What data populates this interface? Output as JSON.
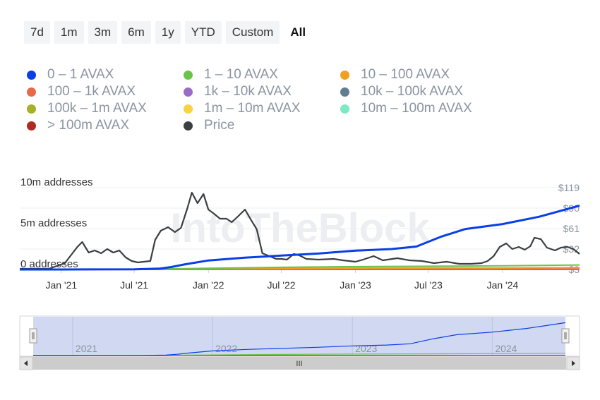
{
  "range_buttons": [
    {
      "label": "7d",
      "active": false
    },
    {
      "label": "1m",
      "active": false
    },
    {
      "label": "3m",
      "active": false
    },
    {
      "label": "6m",
      "active": false
    },
    {
      "label": "1y",
      "active": false
    },
    {
      "label": "YTD",
      "active": false
    },
    {
      "label": "Custom",
      "active": false
    },
    {
      "label": "All",
      "active": true
    }
  ],
  "legend": [
    {
      "label": "0 – 1 AVAX",
      "color": "#0a3ee6"
    },
    {
      "label": "1 – 10 AVAX",
      "color": "#6cc24a"
    },
    {
      "label": "10 – 100 AVAX",
      "color": "#f0a020"
    },
    {
      "label": "100 – 1k AVAX",
      "color": "#e8684a"
    },
    {
      "label": "1k – 10k AVAX",
      "color": "#9b6cc6"
    },
    {
      "label": "10k – 100k AVAX",
      "color": "#5f7f91"
    },
    {
      "label": "100k – 1m AVAX",
      "color": "#a8b023"
    },
    {
      "label": "1m – 10m AVAX",
      "color": "#f7d242"
    },
    {
      "label": "10m – 100m AVAX",
      "color": "#7fe8c4"
    },
    {
      "label": "> 100m AVAX",
      "color": "#b02a22"
    },
    {
      "label": "Price",
      "color": "#3b3f42"
    }
  ],
  "chart_data": {
    "type": "line",
    "watermark": "IntoTheBlock",
    "x_range": [
      "2020-09-20",
      "2024-07-10"
    ],
    "x_tick_labels": [
      {
        "date": "2021-01-01",
        "label": "Jan '21"
      },
      {
        "date": "2021-07-01",
        "label": "Jul '21"
      },
      {
        "date": "2022-01-01",
        "label": "Jan '22"
      },
      {
        "date": "2022-07-01",
        "label": "Jul '22"
      },
      {
        "date": "2023-01-01",
        "label": "Jan '23"
      },
      {
        "date": "2023-07-01",
        "label": "Jul '23"
      },
      {
        "date": "2024-01-01",
        "label": "Jan '24"
      }
    ],
    "y_left": {
      "range": [
        0,
        10000000
      ],
      "ticks": [
        {
          "value": 0,
          "label": "0 addresses"
        },
        {
          "value": 5000000,
          "label": "5m addresses"
        },
        {
          "value": 10000000,
          "label": "10m addresses"
        }
      ]
    },
    "y_right": {
      "range": [
        3,
        119
      ],
      "ticks": [
        {
          "value": 3,
          "label": "$3"
        },
        {
          "value": 32,
          "label": "$32"
        },
        {
          "value": 61,
          "label": "$61"
        },
        {
          "value": 90,
          "label": "$90"
        },
        {
          "value": 119,
          "label": "$119"
        }
      ]
    },
    "series": [
      {
        "name": "0 – 1 AVAX",
        "color": "#0a3ee6",
        "axis": "left",
        "x": [
          "2020-09-20",
          "2021-01-01",
          "2021-07-01",
          "2021-09-01",
          "2021-10-01",
          "2021-11-01",
          "2021-12-01",
          "2022-01-01",
          "2022-04-01",
          "2022-07-01",
          "2022-10-01",
          "2023-01-01",
          "2023-04-01",
          "2023-06-01",
          "2023-08-01",
          "2023-10-01",
          "2024-01-01",
          "2024-04-01",
          "2024-07-10"
        ],
        "y": [
          0,
          0,
          30000,
          100000,
          300000,
          600000,
          850000,
          1100000,
          1450000,
          1700000,
          1950000,
          2300000,
          2500000,
          2800000,
          4000000,
          4950000,
          5550000,
          6450000,
          7800000
        ]
      },
      {
        "name": "1 – 10 AVAX",
        "color": "#6cc24a",
        "axis": "left",
        "x": [
          "2020-09-20",
          "2021-01-01",
          "2021-07-01",
          "2022-01-01",
          "2022-07-01",
          "2023-01-01",
          "2023-07-01",
          "2024-01-01",
          "2024-07-10"
        ],
        "y": [
          0,
          0,
          30000,
          150000,
          270000,
          350000,
          400000,
          450000,
          550000
        ]
      },
      {
        "name": "10 – 100 AVAX",
        "color": "#f0a020",
        "axis": "left",
        "x": [
          "2020-09-20",
          "2021-07-01",
          "2022-01-01",
          "2023-01-01",
          "2024-01-01",
          "2024-07-10"
        ],
        "y": [
          0,
          10000,
          100000,
          170000,
          200000,
          230000
        ]
      },
      {
        "name": "100 – 1k AVAX",
        "color": "#e8684a",
        "axis": "left",
        "x": [
          "2020-09-20",
          "2024-07-10"
        ],
        "y": [
          40000,
          60000
        ]
      },
      {
        "name": "1k – 10k AVAX",
        "color": "#9b6cc6",
        "axis": "left",
        "x": [
          "2020-09-20",
          "2024-07-10"
        ],
        "y": [
          10000,
          15000
        ]
      },
      {
        "name": "10k – 100k AVAX",
        "color": "#5f7f91",
        "axis": "left",
        "x": [
          "2020-09-20",
          "2024-07-10"
        ],
        "y": [
          3000,
          4000
        ]
      },
      {
        "name": "100k – 1m AVAX",
        "color": "#a8b023",
        "axis": "left",
        "x": [
          "2020-09-20",
          "2024-07-10"
        ],
        "y": [
          1000,
          1000
        ]
      },
      {
        "name": "1m – 10m AVAX",
        "color": "#f7d242",
        "axis": "left",
        "x": [
          "2020-09-20",
          "2024-07-10"
        ],
        "y": [
          100,
          100
        ]
      },
      {
        "name": "10m – 100m AVAX",
        "color": "#7fe8c4",
        "axis": "left",
        "x": [
          "2020-09-20",
          "2024-07-10"
        ],
        "y": [
          20,
          20
        ]
      },
      {
        "name": "> 100m AVAX",
        "color": "#b02a22",
        "axis": "left",
        "x": [
          "2020-09-20",
          "2024-07-10"
        ],
        "y": [
          0,
          0
        ]
      },
      {
        "name": "Price",
        "color": "#3b3f42",
        "axis": "right",
        "x": [
          "2020-09-20",
          "2020-12-01",
          "2021-01-10",
          "2021-02-10",
          "2021-02-22",
          "2021-03-10",
          "2021-03-25",
          "2021-04-10",
          "2021-04-25",
          "2021-05-10",
          "2021-05-25",
          "2021-06-10",
          "2021-06-25",
          "2021-07-10",
          "2021-07-25",
          "2021-08-10",
          "2021-08-22",
          "2021-09-05",
          "2021-09-23",
          "2021-10-10",
          "2021-10-25",
          "2021-11-10",
          "2021-11-21",
          "2021-12-05",
          "2021-12-20",
          "2022-01-01",
          "2022-01-15",
          "2022-01-30",
          "2022-02-15",
          "2022-02-28",
          "2022-03-15",
          "2022-04-02",
          "2022-04-15",
          "2022-05-01",
          "2022-05-15",
          "2022-06-01",
          "2022-06-18",
          "2022-07-01",
          "2022-07-15",
          "2022-08-01",
          "2022-08-15",
          "2022-09-01",
          "2022-10-01",
          "2022-11-08",
          "2022-12-01",
          "2023-01-01",
          "2023-01-20",
          "2023-02-15",
          "2023-03-10",
          "2023-04-15",
          "2023-05-15",
          "2023-06-15",
          "2023-07-15",
          "2023-08-15",
          "2023-09-15",
          "2023-10-15",
          "2023-11-10",
          "2023-11-25",
          "2023-12-10",
          "2023-12-25",
          "2024-01-10",
          "2024-01-25",
          "2024-02-10",
          "2024-02-25",
          "2024-03-10",
          "2024-03-20",
          "2024-04-05",
          "2024-04-20",
          "2024-05-10",
          "2024-05-25",
          "2024-06-10",
          "2024-06-25",
          "2024-07-10"
        ],
        "y": [
          4,
          4,
          12,
          35,
          42,
          27,
          30,
          26,
          32,
          27,
          30,
          20,
          15,
          13,
          14,
          15,
          45,
          58,
          63,
          56,
          62,
          90,
          112,
          97,
          110,
          88,
          82,
          75,
          75,
          70,
          78,
          88,
          75,
          60,
          26,
          22,
          18,
          18,
          17,
          25,
          23,
          18,
          17,
          18,
          16,
          14,
          17,
          22,
          16,
          19,
          16,
          15,
          12,
          14,
          11,
          11,
          12,
          15,
          22,
          35,
          40,
          32,
          35,
          31,
          36,
          48,
          46,
          34,
          30,
          34,
          35,
          32,
          25
        ]
      }
    ]
  },
  "navigator": {
    "years": [
      "2021",
      "2022",
      "2023",
      "2024"
    ],
    "scroll_glyph": "III"
  }
}
